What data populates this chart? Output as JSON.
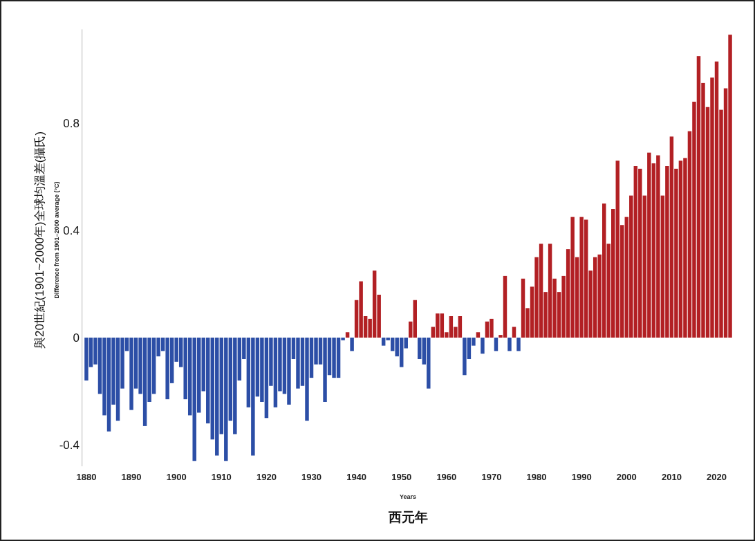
{
  "chart_data": {
    "type": "bar",
    "xlabel": "西元年",
    "ylabel": "與20世紀(1901~2000年)全球均溫差(攝氏)",
    "annotations": [
      "Difference from 1901–2000 average (°C)",
      "Years"
    ],
    "ylim": [
      -0.48,
      1.15
    ],
    "yticks": [
      -0.4,
      0,
      0.4,
      0.8
    ],
    "grid": false,
    "categories": [
      "1880",
      null,
      null,
      null,
      null,
      null,
      null,
      null,
      null,
      null,
      "1890",
      null,
      null,
      null,
      null,
      null,
      null,
      null,
      null,
      null,
      "1900",
      null,
      null,
      null,
      null,
      null,
      null,
      null,
      null,
      null,
      "1910",
      null,
      null,
      null,
      null,
      null,
      null,
      null,
      null,
      null,
      "1920",
      null,
      null,
      null,
      null,
      null,
      null,
      null,
      null,
      null,
      "1930",
      null,
      null,
      null,
      null,
      null,
      null,
      null,
      null,
      null,
      "1940",
      null,
      null,
      null,
      null,
      null,
      null,
      null,
      null,
      null,
      "1950",
      null,
      null,
      null,
      null,
      null,
      null,
      null,
      null,
      null,
      "1960",
      null,
      null,
      null,
      null,
      null,
      null,
      null,
      null,
      null,
      "1970",
      null,
      null,
      null,
      null,
      null,
      null,
      null,
      null,
      null,
      "1980",
      null,
      null,
      null,
      null,
      null,
      null,
      null,
      null,
      null,
      "1990",
      null,
      null,
      null,
      null,
      null,
      null,
      null,
      null,
      null,
      "2000",
      null,
      null,
      null,
      null,
      null,
      null,
      null,
      null,
      null,
      "2010",
      null,
      null,
      null,
      null,
      null,
      null,
      null,
      null,
      null,
      "2020",
      null,
      null,
      null
    ],
    "values": [
      -0.16,
      -0.11,
      -0.1,
      -0.21,
      -0.29,
      -0.35,
      -0.25,
      -0.31,
      -0.19,
      -0.05,
      -0.27,
      -0.19,
      -0.21,
      -0.33,
      -0.24,
      -0.21,
      -0.07,
      -0.05,
      -0.23,
      -0.17,
      -0.09,
      -0.11,
      -0.23,
      -0.29,
      -0.46,
      -0.28,
      -0.2,
      -0.32,
      -0.38,
      -0.44,
      -0.36,
      -0.46,
      -0.31,
      -0.36,
      -0.16,
      -0.08,
      -0.26,
      -0.44,
      -0.22,
      -0.24,
      -0.3,
      -0.18,
      -0.26,
      -0.2,
      -0.21,
      -0.25,
      -0.08,
      -0.19,
      -0.18,
      -0.31,
      -0.15,
      -0.1,
      -0.1,
      -0.24,
      -0.14,
      -0.15,
      -0.15,
      -0.01,
      0.02,
      -0.05,
      0.14,
      0.21,
      0.08,
      0.07,
      0.25,
      0.16,
      -0.03,
      -0.01,
      -0.05,
      -0.07,
      -0.11,
      -0.04,
      0.06,
      0.14,
      -0.08,
      -0.1,
      -0.19,
      0.04,
      0.09,
      0.09,
      0.02,
      0.08,
      0.04,
      0.08,
      -0.14,
      -0.08,
      -0.03,
      0.02,
      -0.06,
      0.06,
      0.07,
      -0.05,
      0.01,
      0.23,
      -0.05,
      0.04,
      -0.05,
      0.22,
      0.11,
      0.19,
      0.3,
      0.35,
      0.17,
      0.35,
      0.22,
      0.17,
      0.23,
      0.33,
      0.45,
      0.3,
      0.45,
      0.44,
      0.25,
      0.3,
      0.31,
      0.5,
      0.35,
      0.48,
      0.66,
      0.42,
      0.45,
      0.53,
      0.64,
      0.63,
      0.53,
      0.69,
      0.65,
      0.68,
      0.53,
      0.64,
      0.75,
      0.63,
      0.66,
      0.67,
      0.77,
      0.88,
      1.05,
      0.95,
      0.86,
      0.97,
      1.03,
      0.85,
      0.93,
      1.13
    ],
    "colors": [
      "#2c4ea6",
      "#2c4ea6",
      "#2c4ea6",
      "#2c4ea6",
      "#2c4ea6",
      "#2c4ea6",
      "#2c4ea6",
      "#2c4ea6",
      "#2c4ea6",
      "#2c4ea6",
      "#2c4ea6",
      "#2c4ea6",
      "#2c4ea6",
      "#2c4ea6",
      "#2c4ea6",
      "#2c4ea6",
      "#2c4ea6",
      "#2c4ea6",
      "#2c4ea6",
      "#2c4ea6",
      "#2c4ea6",
      "#2c4ea6",
      "#2c4ea6",
      "#2c4ea6",
      "#2c4ea6",
      "#2c4ea6",
      "#2c4ea6",
      "#2c4ea6",
      "#2c4ea6",
      "#2c4ea6",
      "#2c4ea6",
      "#2c4ea6",
      "#2c4ea6",
      "#2c4ea6",
      "#2c4ea6",
      "#2c4ea6",
      "#2c4ea6",
      "#2c4ea6",
      "#2c4ea6",
      "#2c4ea6",
      "#2c4ea6",
      "#2c4ea6",
      "#2c4ea6",
      "#2c4ea6",
      "#2c4ea6",
      "#2c4ea6",
      "#2c4ea6",
      "#2c4ea6",
      "#2c4ea6",
      "#2c4ea6",
      "#2c4ea6",
      "#2c4ea6",
      "#2c4ea6",
      "#2c4ea6",
      "#2c4ea6",
      "#2c4ea6",
      "#2c4ea6",
      "#2c4ea6",
      "#b22024",
      "#2c4ea6",
      "#b22024",
      "#b22024",
      "#b22024",
      "#b22024",
      "#b22024",
      "#b22024",
      "#2c4ea6",
      "#2c4ea6",
      "#2c4ea6",
      "#2c4ea6",
      "#2c4ea6",
      "#2c4ea6",
      "#b22024",
      "#b22024",
      "#2c4ea6",
      "#2c4ea6",
      "#2c4ea6",
      "#b22024",
      "#b22024",
      "#b22024",
      "#b22024",
      "#b22024",
      "#b22024",
      "#b22024",
      "#2c4ea6",
      "#2c4ea6",
      "#2c4ea6",
      "#b22024",
      "#2c4ea6",
      "#b22024",
      "#b22024",
      "#2c4ea6",
      "#b22024",
      "#b22024",
      "#2c4ea6",
      "#b22024",
      "#2c4ea6",
      "#b22024",
      "#b22024",
      "#b22024",
      "#b22024",
      "#b22024",
      "#b22024",
      "#b22024",
      "#b22024",
      "#b22024",
      "#b22024",
      "#b22024",
      "#b22024",
      "#b22024",
      "#b22024",
      "#b22024",
      "#b22024",
      "#b22024",
      "#b22024",
      "#b22024",
      "#b22024",
      "#b22024",
      "#b22024",
      "#b22024",
      "#b22024",
      "#b22024",
      "#b22024",
      "#b22024",
      "#b22024",
      "#b22024",
      "#b22024",
      "#b22024",
      "#b22024",
      "#b22024",
      "#b22024",
      "#b22024",
      "#b22024",
      "#b22024",
      "#b22024",
      "#b22024",
      "#b22024",
      "#b22024",
      "#b22024",
      "#b22024",
      "#b22024",
      "#b22024",
      "#b22024",
      "#b22024"
    ]
  }
}
